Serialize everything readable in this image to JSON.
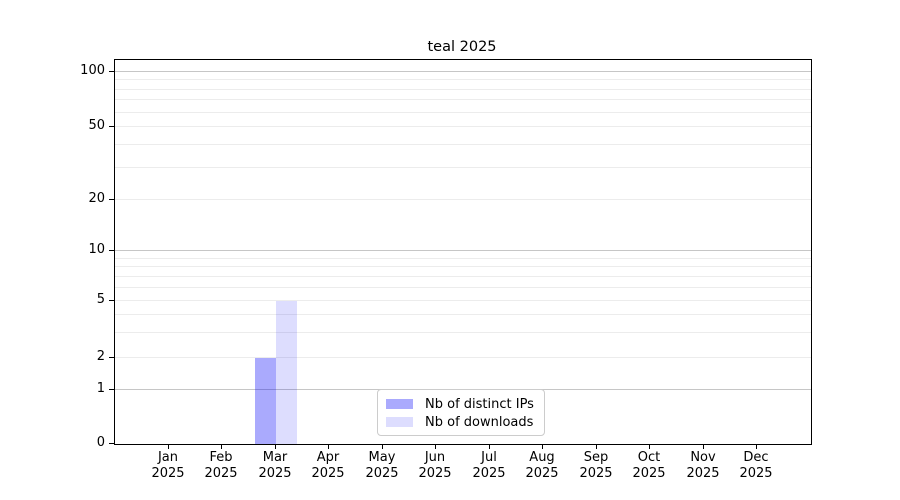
{
  "page": {
    "background": "#ffffff"
  },
  "chart_data": {
    "type": "bar",
    "title": "teal 2025",
    "categories": [
      "Jan",
      "Feb",
      "Mar",
      "Apr",
      "May",
      "Jun",
      "Jul",
      "Aug",
      "Sep",
      "Oct",
      "Nov",
      "Dec"
    ],
    "category_year": "2025",
    "series": [
      {
        "name": "Nb of distinct IPs",
        "color": "rgba(0,0,250,0.335)",
        "values": [
          0,
          0,
          2,
          0,
          0,
          0,
          0,
          0,
          0,
          0,
          0,
          0
        ]
      },
      {
        "name": "Nb of downloads",
        "color": "rgba(0,0,250,0.135)",
        "values": [
          0,
          0,
          5,
          0,
          0,
          0,
          0,
          0,
          0,
          0,
          0,
          0
        ]
      }
    ],
    "xlabel": "",
    "ylabel": "",
    "yscale": "symlog",
    "ylim": [
      0,
      115
    ],
    "ytick_values": [
      0,
      1,
      2,
      5,
      10,
      20,
      50,
      100
    ],
    "grid": {
      "orientation": "horizontal",
      "major_values": [
        1,
        10,
        100
      ],
      "minor_values": [
        2,
        3,
        4,
        5,
        6,
        7,
        8,
        9,
        20,
        30,
        40,
        50,
        60,
        70,
        80,
        90
      ],
      "major_color": "#c6c6c6",
      "minor_color": "#ececec"
    },
    "legend": {
      "position": "lower-center-inside"
    },
    "layout_hints": {
      "ytick_fractions": [
        {
          "value": 0,
          "frac": 0.0
        },
        {
          "value": 1,
          "frac": 0.1406
        },
        {
          "value": 2,
          "frac": 0.224
        },
        {
          "value": 5,
          "frac": 0.3724
        },
        {
          "value": 10,
          "frac": 0.5026
        },
        {
          "value": 20,
          "frac": 0.6354
        },
        {
          "value": 50,
          "frac": 0.8255
        },
        {
          "value": 100,
          "frac": 0.9688
        }
      ]
    }
  }
}
